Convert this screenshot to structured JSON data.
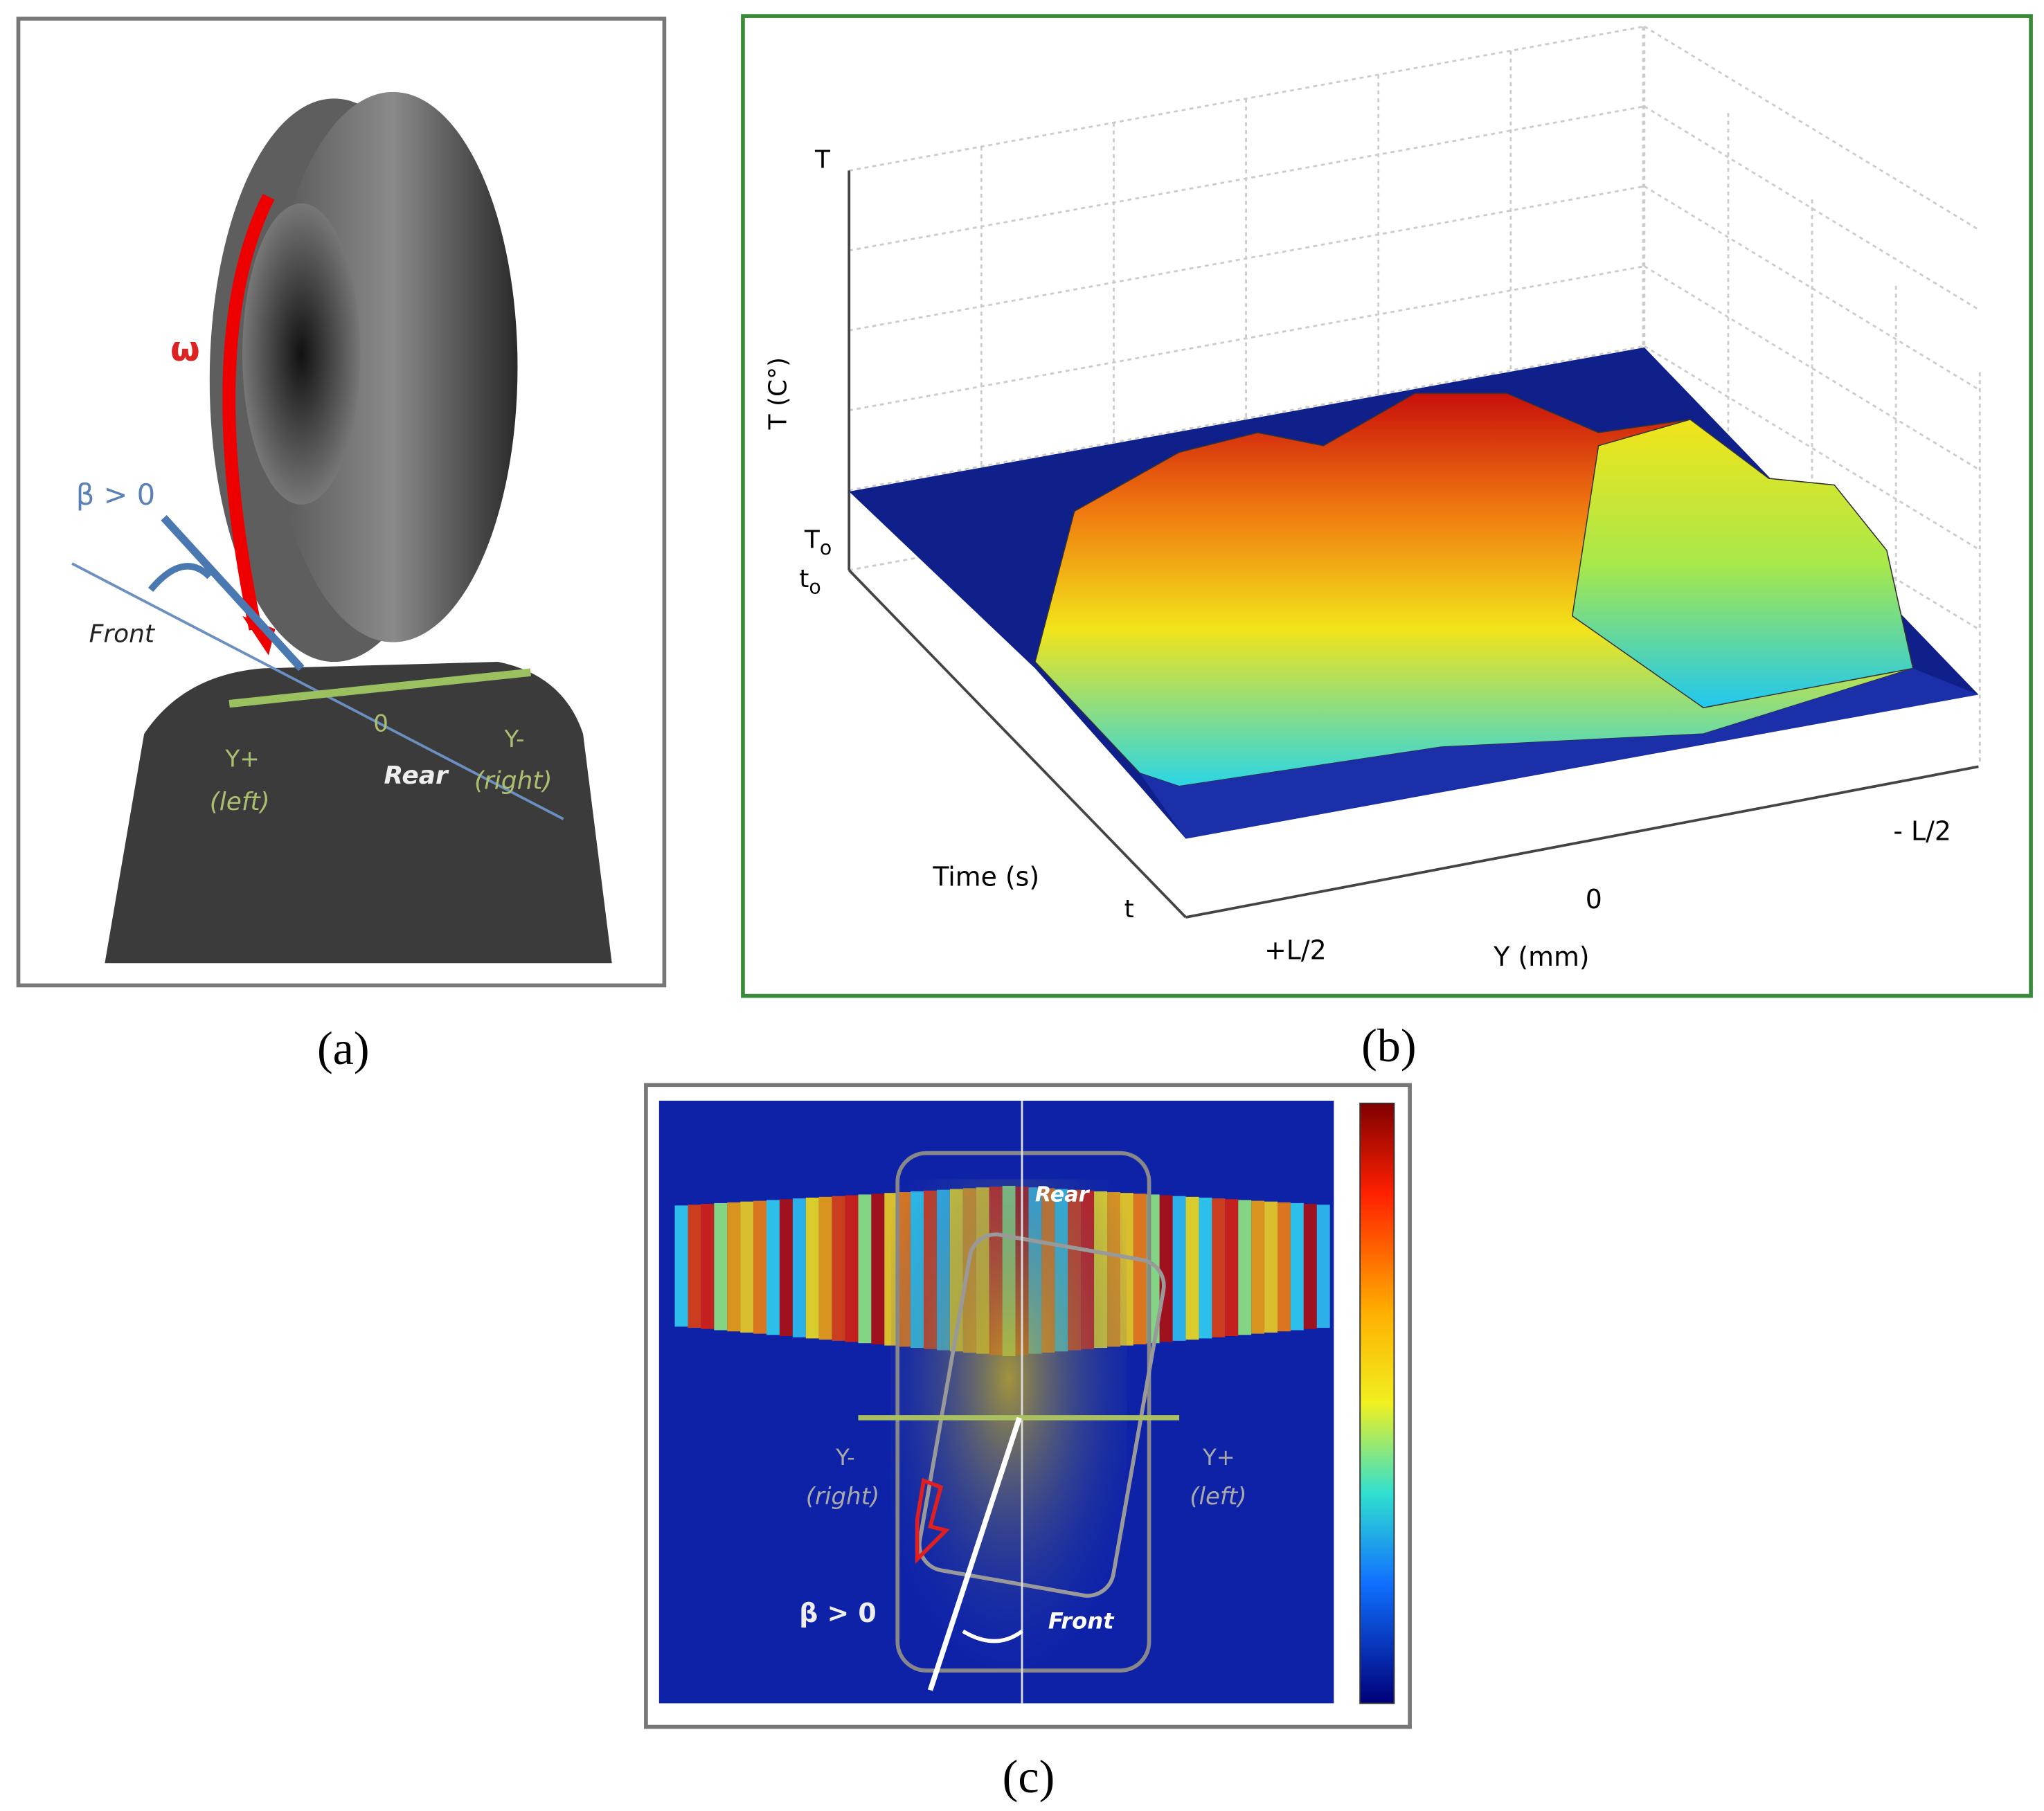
{
  "panel_a": {
    "caption": "(a)",
    "omega": "ω",
    "beta": "β > 0",
    "front": "Front",
    "origin": "0",
    "rear": "Rear",
    "y_plus": "Y+",
    "y_plus_side": "(left)",
    "y_minus": "Y-",
    "y_minus_side": "(right)"
  },
  "panel_b": {
    "caption": "(b)",
    "z_top": "T",
    "z_label": "T (C°)",
    "z_base": {
      "label": "T",
      "sub": "o"
    },
    "time_base": {
      "label": "t",
      "sub": "o"
    },
    "time_label": "Time (s)",
    "time_end": "t",
    "y_left": "+L/2",
    "y_mid": "0",
    "y_right": "- L/2",
    "y_label": "Y (mm)"
  },
  "panel_c": {
    "caption": "(c)",
    "rear": "Rear",
    "y_minus": "Y-",
    "y_minus_side": "(right)",
    "y_plus": "Y+",
    "y_plus_side": "(left)",
    "beta": "β > 0",
    "front": "Front"
  }
}
